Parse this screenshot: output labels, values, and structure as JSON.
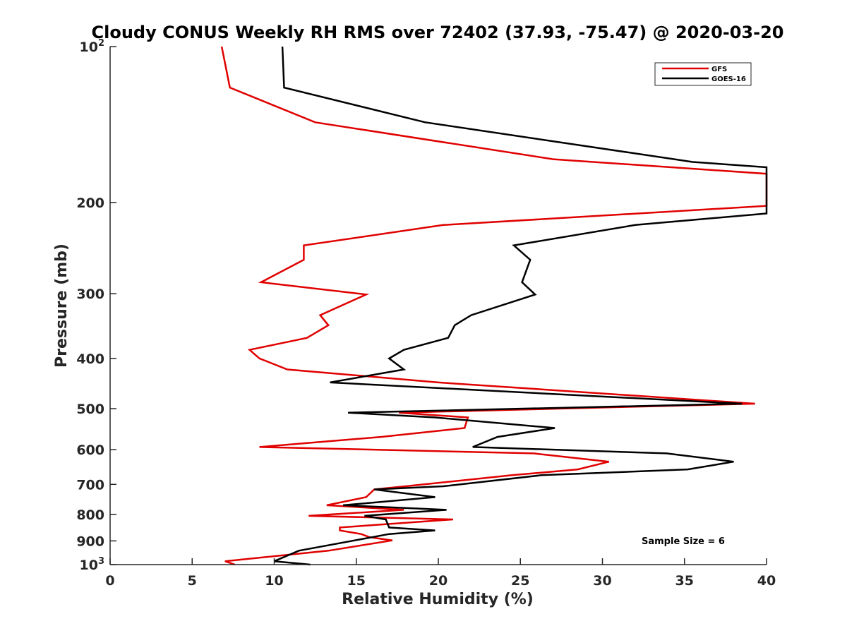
{
  "chart_data": {
    "type": "line",
    "title": "Cloudy CONUS Weekly RH RMS over 72402 (37.93, -75.47) @ 2020-03-20",
    "xlabel": "Relative Humidity (%)",
    "ylabel": "Pressure (mb)",
    "xlim": [
      0,
      40
    ],
    "ylim": [
      100,
      1000
    ],
    "yscale": "log",
    "y_reversed": true,
    "grid": false,
    "legend_position": "top-right",
    "x_ticks": [
      0,
      5,
      10,
      15,
      20,
      25,
      30,
      35,
      40
    ],
    "x_tick_labels": [
      "0",
      "5",
      "10",
      "15",
      "20",
      "25",
      "30",
      "35",
      "40"
    ],
    "y_ticks": [
      100,
      200,
      300,
      400,
      500,
      600,
      700,
      800,
      900,
      1000
    ],
    "y_tick_labels": [
      {
        "base": "10",
        "exp": "2"
      },
      {
        "base": "200",
        "exp": ""
      },
      {
        "base": "300",
        "exp": ""
      },
      {
        "base": "400",
        "exp": ""
      },
      {
        "base": "500",
        "exp": ""
      },
      {
        "base": "600",
        "exp": ""
      },
      {
        "base": "700",
        "exp": ""
      },
      {
        "base": "800",
        "exp": ""
      },
      {
        "base": "900",
        "exp": ""
      },
      {
        "base": "10",
        "exp": "3"
      }
    ],
    "series": [
      {
        "name": "GFS",
        "color": "#e00000",
        "points": [
          [
            6.8,
            100
          ],
          [
            7.3,
            120
          ],
          [
            12.5,
            140
          ],
          [
            27.0,
            165
          ],
          [
            40.0,
            176
          ],
          [
            40.0,
            203
          ],
          [
            20.3,
            221
          ],
          [
            11.8,
            242
          ],
          [
            11.8,
            258
          ],
          [
            9.2,
            285
          ],
          [
            15.6,
            301
          ],
          [
            12.8,
            330
          ],
          [
            13.3,
            345
          ],
          [
            12.0,
            365
          ],
          [
            8.5,
            385
          ],
          [
            9.1,
            400
          ],
          [
            10.8,
            420
          ],
          [
            20.0,
            445
          ],
          [
            39.3,
            489
          ],
          [
            17.6,
            509
          ],
          [
            21.8,
            520
          ],
          [
            21.6,
            545
          ],
          [
            16.5,
            567
          ],
          [
            9.1,
            593
          ],
          [
            25.8,
            610
          ],
          [
            30.4,
            633
          ],
          [
            28.5,
            655
          ],
          [
            24.5,
            672
          ],
          [
            18.0,
            706
          ],
          [
            16.1,
            716
          ],
          [
            15.6,
            741
          ],
          [
            13.2,
            768
          ],
          [
            17.9,
            784
          ],
          [
            12.1,
            805
          ],
          [
            20.9,
            818
          ],
          [
            14.0,
            848
          ],
          [
            14.0,
            859
          ],
          [
            15.3,
            873
          ],
          [
            15.8,
            885
          ],
          [
            17.2,
            898
          ],
          [
            13.3,
            940
          ],
          [
            7.0,
            985
          ],
          [
            7.6,
            1000
          ]
        ]
      },
      {
        "name": "GOES-16",
        "color": "#000000",
        "points": [
          [
            10.5,
            100
          ],
          [
            10.6,
            120
          ],
          [
            19.2,
            140
          ],
          [
            35.5,
            167
          ],
          [
            40.0,
            171
          ],
          [
            40.0,
            210
          ],
          [
            32.0,
            221
          ],
          [
            24.6,
            242
          ],
          [
            25.6,
            258
          ],
          [
            25.1,
            285
          ],
          [
            25.9,
            301
          ],
          [
            22.0,
            330
          ],
          [
            21.0,
            345
          ],
          [
            20.6,
            365
          ],
          [
            17.9,
            385
          ],
          [
            17.0,
            400
          ],
          [
            17.9,
            420
          ],
          [
            13.4,
            445
          ],
          [
            38.5,
            489
          ],
          [
            14.5,
            509
          ],
          [
            19.8,
            520
          ],
          [
            27.1,
            545
          ],
          [
            23.6,
            567
          ],
          [
            22.1,
            593
          ],
          [
            33.9,
            610
          ],
          [
            38.0,
            633
          ],
          [
            35.2,
            655
          ],
          [
            26.3,
            672
          ],
          [
            20.3,
            706
          ],
          [
            16.1,
            716
          ],
          [
            19.8,
            741
          ],
          [
            14.2,
            768
          ],
          [
            20.5,
            784
          ],
          [
            15.5,
            805
          ],
          [
            16.8,
            818
          ],
          [
            17.0,
            848
          ],
          [
            19.8,
            859
          ],
          [
            17.0,
            873
          ],
          [
            11.5,
            940
          ],
          [
            10.0,
            985
          ],
          [
            12.2,
            1000
          ]
        ]
      }
    ],
    "annotation": "Sample Size = 6"
  }
}
